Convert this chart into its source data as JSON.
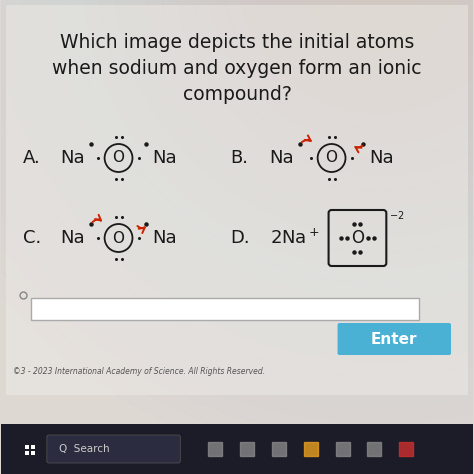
{
  "title_line1": "Which image depicts the initial atoms",
  "title_line2": "when sodium and oxygen form an ionic",
  "title_line3": "compound?",
  "bg_color": "#ddd8d2",
  "content_bg": "#e8e3dd",
  "text_color": "#1a1a1a",
  "arrow_color": "#cc2200",
  "enter_btn_color": "#4ab0d4",
  "enter_btn_text": "Enter",
  "copyright": "©3 - 2023 International Academy of Science. All Rights Reserved.",
  "taskbar_color": "#1c1c28",
  "search_text": "Search",
  "figsize": [
    4.74,
    4.74
  ],
  "dpi": 100
}
